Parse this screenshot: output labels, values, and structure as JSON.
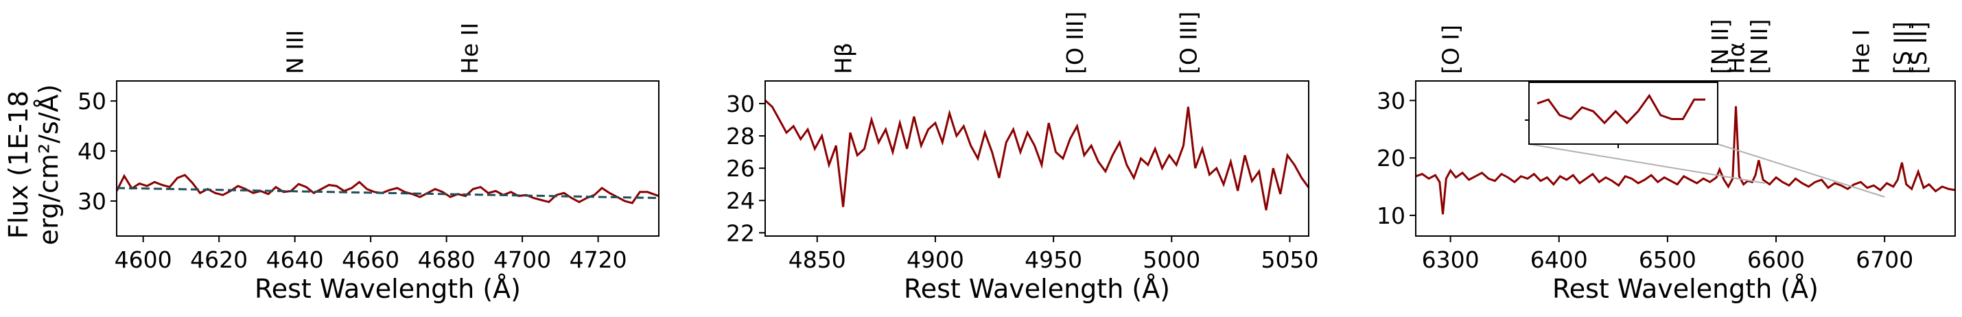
{
  "figure": {
    "ylabel_line1": "Flux (1E-18",
    "ylabel_line2": "erg/cm²/s/Å)"
  },
  "colors": {
    "spectrum": "#8b0000",
    "continuum_fit": "#1f4f5a",
    "axes": "#000000",
    "inset_connector": "#b0b0b0"
  },
  "chart_data": [
    {
      "type": "line",
      "xlabel": "Rest Wavelength (Å)",
      "xlim": [
        4593,
        4736
      ],
      "ylim": [
        23,
        54
      ],
      "xticks": [
        4600,
        4620,
        4640,
        4660,
        4680,
        4700,
        4720
      ],
      "yticks": [
        30,
        40,
        50
      ],
      "line_markers": [
        {
          "label": "N III",
          "x": 4640
        },
        {
          "label": "He II",
          "x": 4686
        }
      ],
      "series": [
        {
          "style": "solid",
          "x": [
            4593,
            4595,
            4597,
            4599,
            4601,
            4603,
            4605,
            4607,
            4609,
            4611,
            4613,
            4615,
            4617,
            4619,
            4621,
            4623,
            4625,
            4627,
            4629,
            4631,
            4633,
            4635,
            4637,
            4639,
            4641,
            4643,
            4645,
            4647,
            4649,
            4651,
            4653,
            4655,
            4657,
            4659,
            4661,
            4663,
            4665,
            4667,
            4669,
            4671,
            4673,
            4675,
            4677,
            4679,
            4681,
            4683,
            4685,
            4687,
            4689,
            4691,
            4693,
            4695,
            4697,
            4699,
            4701,
            4703,
            4705,
            4707,
            4709,
            4711,
            4713,
            4715,
            4717,
            4719,
            4721,
            4723,
            4725,
            4727,
            4729,
            4731,
            4733,
            4736
          ],
          "y": [
            32.0,
            35.0,
            32.5,
            33.5,
            33.0,
            33.8,
            33.2,
            32.8,
            34.6,
            35.2,
            33.6,
            31.6,
            32.4,
            31.6,
            31.2,
            32.0,
            33.0,
            32.4,
            31.6,
            32.0,
            31.4,
            32.8,
            31.8,
            32.0,
            33.4,
            32.8,
            31.6,
            32.4,
            33.2,
            33.0,
            32.0,
            32.6,
            33.8,
            32.4,
            31.8,
            31.6,
            32.2,
            32.6,
            31.8,
            31.4,
            30.8,
            31.6,
            32.4,
            31.8,
            30.8,
            31.4,
            31.0,
            32.4,
            32.8,
            31.6,
            32.0,
            31.2,
            31.8,
            31.0,
            31.2,
            30.6,
            30.2,
            29.8,
            31.2,
            31.6,
            30.6,
            29.8,
            30.6,
            31.2,
            32.6,
            31.6,
            30.8,
            30.0,
            29.6,
            31.8,
            31.8,
            31.0
          ]
        },
        {
          "style": "dashed",
          "x": [
            4593,
            4736
          ],
          "y": [
            32.6,
            30.6
          ]
        }
      ]
    },
    {
      "type": "line",
      "xlabel": "Rest Wavelength (Å)",
      "xlim": [
        4828,
        5058
      ],
      "ylim": [
        21.8,
        31.4
      ],
      "xticks": [
        4850,
        4900,
        4950,
        5000,
        5050
      ],
      "yticks": [
        22,
        24,
        26,
        28,
        30
      ],
      "line_markers": [
        {
          "label": "Hβ",
          "x": 4861
        },
        {
          "label": "[O III]",
          "x": 4959
        },
        {
          "label": "[O III]",
          "x": 5007
        }
      ],
      "series": [
        {
          "style": "solid",
          "x": [
            4828,
            4831,
            4834,
            4837,
            4840,
            4843,
            4846,
            4849,
            4852,
            4855,
            4858,
            4861,
            4864,
            4867,
            4870,
            4873,
            4876,
            4879,
            4882,
            4885,
            4888,
            4891,
            4894,
            4897,
            4900,
            4903,
            4906,
            4909,
            4912,
            4915,
            4918,
            4921,
            4924,
            4927,
            4930,
            4933,
            4936,
            4939,
            4942,
            4945,
            4948,
            4951,
            4954,
            4957,
            4960,
            4963,
            4966,
            4969,
            4972,
            4975,
            4978,
            4981,
            4984,
            4987,
            4990,
            4993,
            4996,
            4999,
            5002,
            5005,
            5007,
            5010,
            5013,
            5016,
            5019,
            5022,
            5025,
            5028,
            5031,
            5034,
            5037,
            5040,
            5043,
            5046,
            5049,
            5052,
            5055,
            5058
          ],
          "y": [
            30.2,
            29.8,
            29.0,
            28.2,
            28.6,
            27.8,
            28.4,
            27.2,
            28.0,
            26.2,
            27.4,
            23.6,
            28.2,
            26.8,
            27.2,
            29.0,
            27.6,
            28.4,
            27.0,
            28.8,
            27.2,
            29.2,
            27.4,
            28.4,
            28.8,
            27.6,
            29.4,
            28.0,
            28.6,
            27.4,
            26.6,
            28.2,
            27.0,
            25.4,
            27.6,
            28.4,
            27.0,
            28.2,
            27.4,
            26.2,
            28.8,
            27.0,
            26.6,
            27.8,
            28.6,
            26.8,
            27.4,
            26.4,
            25.8,
            26.8,
            27.6,
            26.2,
            25.4,
            26.6,
            26.2,
            27.2,
            26.0,
            26.8,
            26.2,
            27.4,
            29.8,
            26.0,
            27.2,
            25.6,
            26.0,
            25.0,
            26.4,
            24.6,
            26.8,
            25.2,
            25.8,
            23.4,
            26.0,
            24.4,
            26.8,
            26.2,
            25.4,
            24.8
          ]
        }
      ]
    },
    {
      "type": "line",
      "xlabel": "Rest Wavelength (Å)",
      "xlim": [
        6268,
        6765
      ],
      "ylim": [
        6.4,
        33.4
      ],
      "xticks": [
        6300,
        6400,
        6500,
        6600,
        6700
      ],
      "yticks": [
        10,
        20,
        30
      ],
      "line_markers": [
        {
          "label": "[O I]",
          "x": 6300
        },
        {
          "label": "[N II]",
          "x": 6548
        },
        {
          "label": "Hα",
          "x": 6563
        },
        {
          "label": "[N II]",
          "x": 6584
        },
        {
          "label": "He I",
          "x": 6678
        },
        {
          "label": "[S II]",
          "x": 6716
        },
        {
          "label": "[S II]",
          "x": 6731
        }
      ],
      "series": [
        {
          "style": "solid",
          "x": [
            6268,
            6274,
            6280,
            6286,
            6290,
            6293,
            6296,
            6300,
            6305,
            6311,
            6317,
            6323,
            6329,
            6335,
            6341,
            6347,
            6353,
            6359,
            6365,
            6371,
            6377,
            6383,
            6389,
            6395,
            6401,
            6407,
            6413,
            6419,
            6425,
            6431,
            6437,
            6443,
            6449,
            6455,
            6461,
            6467,
            6473,
            6479,
            6485,
            6491,
            6497,
            6503,
            6509,
            6515,
            6521,
            6527,
            6533,
            6539,
            6545,
            6548,
            6552,
            6556,
            6560,
            6563,
            6566,
            6570,
            6574,
            6578,
            6581,
            6584,
            6588,
            6594,
            6600,
            6606,
            6612,
            6618,
            6624,
            6630,
            6636,
            6642,
            6648,
            6654,
            6660,
            6666,
            6672,
            6678,
            6684,
            6690,
            6696,
            6702,
            6708,
            6712,
            6716,
            6720,
            6725,
            6731,
            6736,
            6741,
            6747,
            6753,
            6759,
            6765
          ],
          "y": [
            16.8,
            17.2,
            16.4,
            17.0,
            15.8,
            10.2,
            16.4,
            17.8,
            16.6,
            17.4,
            16.2,
            16.8,
            17.4,
            16.4,
            16.0,
            17.2,
            16.6,
            15.8,
            16.8,
            16.4,
            17.2,
            16.0,
            16.6,
            15.4,
            16.8,
            16.2,
            17.0,
            15.6,
            16.4,
            17.2,
            15.8,
            16.6,
            16.0,
            15.2,
            16.8,
            16.4,
            15.6,
            16.2,
            17.0,
            15.8,
            16.6,
            16.0,
            15.4,
            16.8,
            16.2,
            15.6,
            16.4,
            15.8,
            16.6,
            18.0,
            16.2,
            15.0,
            16.4,
            29.0,
            16.8,
            15.4,
            16.0,
            15.8,
            17.0,
            19.6,
            16.2,
            15.4,
            16.6,
            15.8,
            15.2,
            16.4,
            15.6,
            15.0,
            15.8,
            16.2,
            14.8,
            15.6,
            15.2,
            14.6,
            15.4,
            15.8,
            14.8,
            15.2,
            14.4,
            15.6,
            15.0,
            16.2,
            19.2,
            15.4,
            14.6,
            17.6,
            14.8,
            15.4,
            14.2,
            15.0,
            14.6,
            14.4
          ]
        }
      ],
      "inset": {
        "x": [
          6470,
          6473,
          6476,
          6479,
          6482,
          6485,
          6488,
          6491,
          6494,
          6497,
          6500,
          6503,
          6506,
          6509,
          6512,
          6515
        ],
        "y": [
          16.8,
          16.9,
          16.5,
          16.4,
          16.7,
          16.6,
          16.3,
          16.6,
          16.3,
          16.6,
          17.0,
          16.5,
          16.4,
          16.4,
          16.9,
          16.9
        ]
      }
    }
  ]
}
